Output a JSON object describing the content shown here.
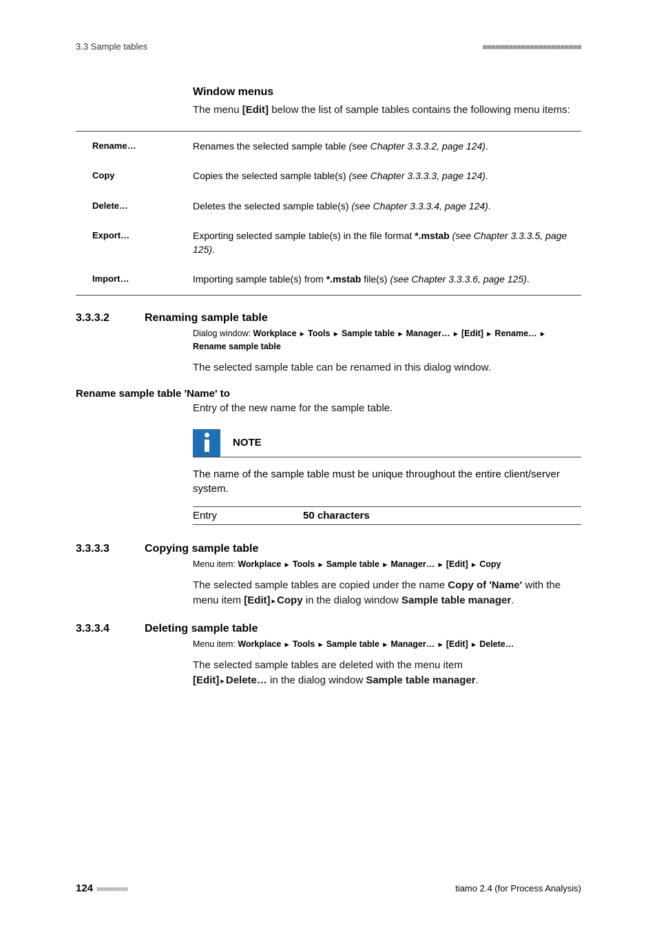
{
  "header": {
    "left": "3.3 Sample tables",
    "dots": "■■■■■■■■■■■■■■■■■■■■■■■"
  },
  "windowMenus": {
    "title": "Window menus",
    "intro_pre": "The menu ",
    "intro_bold": "[Edit]",
    "intro_post": " below the list of sample tables contains the following menu items:"
  },
  "menuRows": {
    "rename": {
      "label": "Rename…",
      "desc": "Renames the selected sample table ",
      "ref": "(see Chapter 3.3.3.2, page 124)",
      "tail": "."
    },
    "copy": {
      "label": "Copy",
      "desc": "Copies the selected sample table(s) ",
      "ref": "(see Chapter 3.3.3.3, page 124)",
      "tail": "."
    },
    "delete": {
      "label": "Delete…",
      "desc": "Deletes the selected sample table(s) ",
      "ref": "(see Chapter 3.3.3.4, page 124)",
      "tail": "."
    },
    "export": {
      "label": "Export…",
      "desc": "Exporting selected sample table(s) in the file format ",
      "fmt": "*.mstab",
      "ref": " (see Chapter 3.3.3.5, page 125)",
      "tail": "."
    },
    "import": {
      "label": "Import…",
      "desc": "Importing sample table(s) from ",
      "fmt": "*.mstab",
      "mid": " file(s) ",
      "ref": "(see Chapter 3.3.3.6, page 125)",
      "tail": "."
    }
  },
  "s3332": {
    "num": "3.3.3.2",
    "title": "Renaming sample table",
    "path_label": "Dialog window: ",
    "path": [
      "Workplace",
      "Tools",
      "Sample table",
      "Manager…",
      "[Edit]",
      "Rename…",
      "Rename sample table"
    ],
    "body": "The selected sample table can be renamed in this dialog window.",
    "subhead": "Rename sample table 'Name' to",
    "field_desc": "Entry of the new name for the sample table.",
    "note_label": "NOTE",
    "note_text": "The name of the sample table must be unique throughout the entire client/server system.",
    "entry_label": "Entry",
    "entry_value": "50 characters"
  },
  "s3333": {
    "num": "3.3.3.3",
    "title": "Copying sample table",
    "path_label": "Menu item: ",
    "path": [
      "Workplace",
      "Tools",
      "Sample table",
      "Manager…",
      "[Edit]",
      "Copy"
    ],
    "body_pre": "The selected sample tables are copied under the name ",
    "body_b1": "Copy of 'Name'",
    "body_mid1": " with the menu item ",
    "body_b2": "[Edit]",
    "body_arrow": " ▸ ",
    "body_b3": "Copy",
    "body_mid2": " in the dialog window ",
    "body_b4": "Sample table manager",
    "body_tail": "."
  },
  "s3334": {
    "num": "3.3.3.4",
    "title": "Deleting sample table",
    "path_label": "Menu item: ",
    "path": [
      "Workplace",
      "Tools",
      "Sample table",
      "Manager…",
      "[Edit]",
      "Delete…"
    ],
    "body_pre": "The selected sample tables are deleted with the menu item ",
    "body_b1": "[Edit]",
    "body_arrow": " ▸ ",
    "body_b2": "Delete…",
    "body_mid": " in the dialog window ",
    "body_b3": "Sample table manager",
    "body_tail": "."
  },
  "footer": {
    "page": "124",
    "dots": "■■■■■■■■",
    "right": "tiamo 2.4 (for Process Analysis)"
  }
}
